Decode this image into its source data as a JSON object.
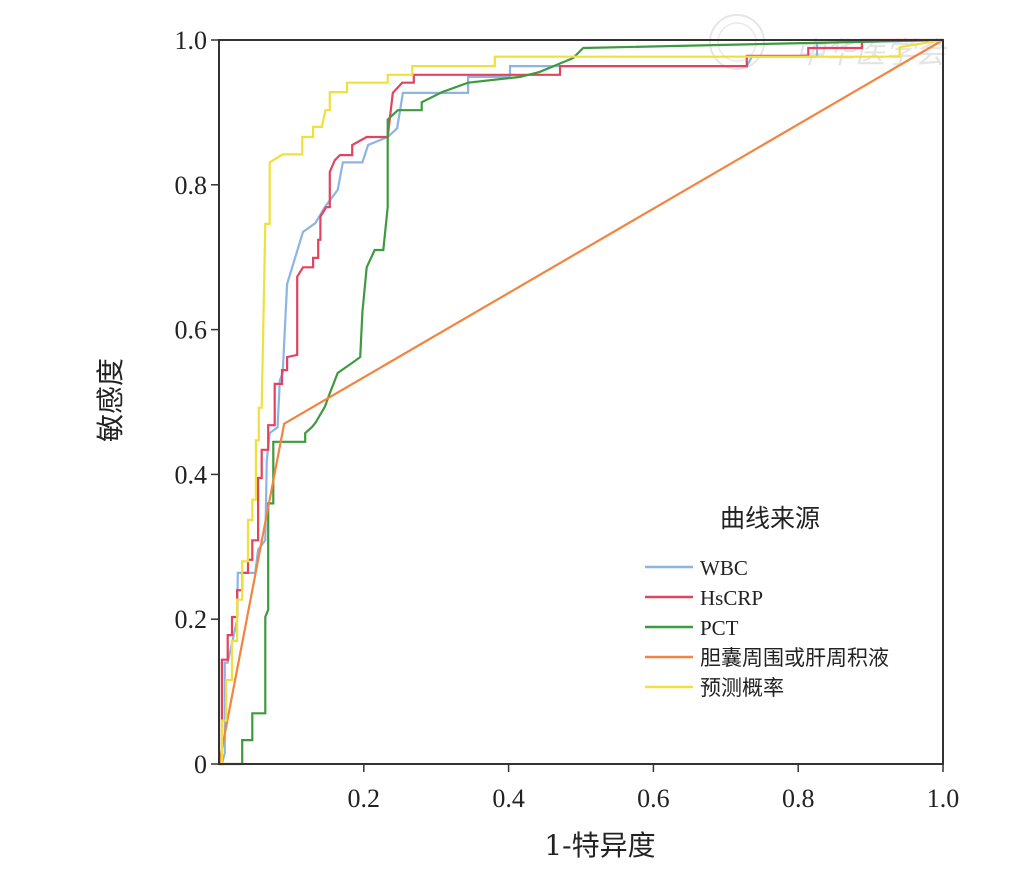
{
  "chart_data": {
    "type": "line",
    "title": "",
    "xlabel": "1-特异度",
    "ylabel": "敏感度",
    "xlim": [
      0,
      1
    ],
    "ylim": [
      0,
      1
    ],
    "x_ticks": [
      "0.2",
      "0.4",
      "0.6",
      "0.8",
      "1.0"
    ],
    "x_tick_values": [
      0.2,
      0.4,
      0.6,
      0.8,
      1.0
    ],
    "y_ticks": [
      "0",
      "0.2",
      "0.4",
      "0.6",
      "0.8",
      "1.0"
    ],
    "y_tick_values": [
      0,
      0.2,
      0.4,
      0.6,
      0.8,
      1.0
    ],
    "grid": false,
    "legend_title": "曲线来源",
    "legend_position": "bottom-right",
    "watermark": "中华医学会",
    "series": [
      {
        "name": "WBC",
        "color": "#8db4e6",
        "points": [
          [
            0,
            0
          ],
          [
            0.004,
            0
          ],
          [
            0.008,
            0.015
          ],
          [
            0.008,
            0.14
          ],
          [
            0.012,
            0.14
          ],
          [
            0.025,
            0.199
          ],
          [
            0.026,
            0.264
          ],
          [
            0.05,
            0.264
          ],
          [
            0.054,
            0.296
          ],
          [
            0.064,
            0.309
          ],
          [
            0.066,
            0.42
          ],
          [
            0.07,
            0.457
          ],
          [
            0.081,
            0.465
          ],
          [
            0.084,
            0.53
          ],
          [
            0.088,
            0.54
          ],
          [
            0.094,
            0.663
          ],
          [
            0.116,
            0.735
          ],
          [
            0.133,
            0.747
          ],
          [
            0.146,
            0.769
          ],
          [
            0.164,
            0.793
          ],
          [
            0.171,
            0.831
          ],
          [
            0.198,
            0.831
          ],
          [
            0.206,
            0.855
          ],
          [
            0.233,
            0.866
          ],
          [
            0.246,
            0.878
          ],
          [
            0.254,
            0.927
          ],
          [
            0.344,
            0.927
          ],
          [
            0.344,
            0.949
          ],
          [
            0.402,
            0.949
          ],
          [
            0.402,
            0.964
          ],
          [
            0.729,
            0.964
          ],
          [
            0.736,
            0.977
          ],
          [
            0.826,
            0.977
          ],
          [
            0.826,
            0.996
          ],
          [
            1,
            1
          ]
        ]
      },
      {
        "name": "HsCRP",
        "color": "#e2435f",
        "points": [
          [
            0,
            0
          ],
          [
            0.004,
            0
          ],
          [
            0.004,
            0.144
          ],
          [
            0.012,
            0.144
          ],
          [
            0.012,
            0.178
          ],
          [
            0.018,
            0.178
          ],
          [
            0.018,
            0.203
          ],
          [
            0.025,
            0.203
          ],
          [
            0.025,
            0.24
          ],
          [
            0.032,
            0.24
          ],
          [
            0.032,
            0.264
          ],
          [
            0.04,
            0.264
          ],
          [
            0.04,
            0.282
          ],
          [
            0.046,
            0.282
          ],
          [
            0.046,
            0.309
          ],
          [
            0.054,
            0.309
          ],
          [
            0.054,
            0.395
          ],
          [
            0.059,
            0.395
          ],
          [
            0.059,
            0.434
          ],
          [
            0.068,
            0.434
          ],
          [
            0.068,
            0.468
          ],
          [
            0.077,
            0.468
          ],
          [
            0.077,
            0.525
          ],
          [
            0.087,
            0.525
          ],
          [
            0.087,
            0.544
          ],
          [
            0.094,
            0.544
          ],
          [
            0.094,
            0.562
          ],
          [
            0.108,
            0.565
          ],
          [
            0.108,
            0.673
          ],
          [
            0.116,
            0.686
          ],
          [
            0.13,
            0.686
          ],
          [
            0.13,
            0.699
          ],
          [
            0.137,
            0.699
          ],
          [
            0.137,
            0.724
          ],
          [
            0.14,
            0.724
          ],
          [
            0.14,
            0.756
          ],
          [
            0.148,
            0.769
          ],
          [
            0.153,
            0.769
          ],
          [
            0.153,
            0.818
          ],
          [
            0.16,
            0.834
          ],
          [
            0.167,
            0.841
          ],
          [
            0.184,
            0.841
          ],
          [
            0.184,
            0.855
          ],
          [
            0.204,
            0.866
          ],
          [
            0.233,
            0.866
          ],
          [
            0.24,
            0.927
          ],
          [
            0.253,
            0.941
          ],
          [
            0.269,
            0.941
          ],
          [
            0.269,
            0.952
          ],
          [
            0.471,
            0.952
          ],
          [
            0.471,
            0.964
          ],
          [
            0.729,
            0.964
          ],
          [
            0.729,
            0.978
          ],
          [
            0.814,
            0.978
          ],
          [
            0.814,
            0.989
          ],
          [
            0.888,
            0.989
          ],
          [
            0.888,
            1
          ],
          [
            1,
            1
          ]
        ]
      },
      {
        "name": "PCT",
        "color": "#3e9a3e",
        "points": [
          [
            0,
            0
          ],
          [
            0.032,
            0
          ],
          [
            0.032,
            0.033
          ],
          [
            0.046,
            0.033
          ],
          [
            0.046,
            0.07
          ],
          [
            0.064,
            0.07
          ],
          [
            0.064,
            0.203
          ],
          [
            0.068,
            0.213
          ],
          [
            0.068,
            0.36
          ],
          [
            0.075,
            0.36
          ],
          [
            0.075,
            0.445
          ],
          [
            0.119,
            0.445
          ],
          [
            0.119,
            0.457
          ],
          [
            0.128,
            0.465
          ],
          [
            0.133,
            0.471
          ],
          [
            0.146,
            0.493
          ],
          [
            0.153,
            0.512
          ],
          [
            0.164,
            0.54
          ],
          [
            0.184,
            0.554
          ],
          [
            0.195,
            0.562
          ],
          [
            0.198,
            0.624
          ],
          [
            0.204,
            0.686
          ],
          [
            0.215,
            0.71
          ],
          [
            0.227,
            0.71
          ],
          [
            0.233,
            0.769
          ],
          [
            0.233,
            0.89
          ],
          [
            0.247,
            0.903
          ],
          [
            0.28,
            0.903
          ],
          [
            0.28,
            0.914
          ],
          [
            0.308,
            0.928
          ],
          [
            0.344,
            0.941
          ],
          [
            0.416,
            0.949
          ],
          [
            0.443,
            0.956
          ],
          [
            0.489,
            0.975
          ],
          [
            0.503,
            0.989
          ],
          [
            0.82,
            0.996
          ],
          [
            1,
            1
          ]
        ]
      },
      {
        "name": "胆囊周围或肝周积液",
        "color": "#f2843f",
        "points": [
          [
            0,
            0
          ],
          [
            0.09,
            0.47
          ],
          [
            1,
            1
          ]
        ]
      },
      {
        "name": "预测概率",
        "color": "#f0e03c",
        "points": [
          [
            0,
            0
          ],
          [
            0.004,
            0
          ],
          [
            0.004,
            0.06
          ],
          [
            0.01,
            0.06
          ],
          [
            0.01,
            0.116
          ],
          [
            0.018,
            0.116
          ],
          [
            0.018,
            0.17
          ],
          [
            0.025,
            0.17
          ],
          [
            0.025,
            0.227
          ],
          [
            0.032,
            0.227
          ],
          [
            0.032,
            0.28
          ],
          [
            0.04,
            0.28
          ],
          [
            0.04,
            0.337
          ],
          [
            0.046,
            0.337
          ],
          [
            0.046,
            0.365
          ],
          [
            0.051,
            0.365
          ],
          [
            0.051,
            0.447
          ],
          [
            0.055,
            0.447
          ],
          [
            0.055,
            0.492
          ],
          [
            0.059,
            0.492
          ],
          [
            0.064,
            0.746
          ],
          [
            0.07,
            0.746
          ],
          [
            0.07,
            0.831
          ],
          [
            0.088,
            0.842
          ],
          [
            0.115,
            0.842
          ],
          [
            0.115,
            0.866
          ],
          [
            0.13,
            0.866
          ],
          [
            0.13,
            0.88
          ],
          [
            0.142,
            0.88
          ],
          [
            0.147,
            0.903
          ],
          [
            0.153,
            0.903
          ],
          [
            0.153,
            0.928
          ],
          [
            0.177,
            0.928
          ],
          [
            0.177,
            0.941
          ],
          [
            0.233,
            0.941
          ],
          [
            0.233,
            0.952
          ],
          [
            0.267,
            0.952
          ],
          [
            0.267,
            0.964
          ],
          [
            0.381,
            0.964
          ],
          [
            0.381,
            0.977
          ],
          [
            0.94,
            0.977
          ],
          [
            0.94,
            0.99
          ],
          [
            1,
            1
          ]
        ]
      }
    ]
  }
}
